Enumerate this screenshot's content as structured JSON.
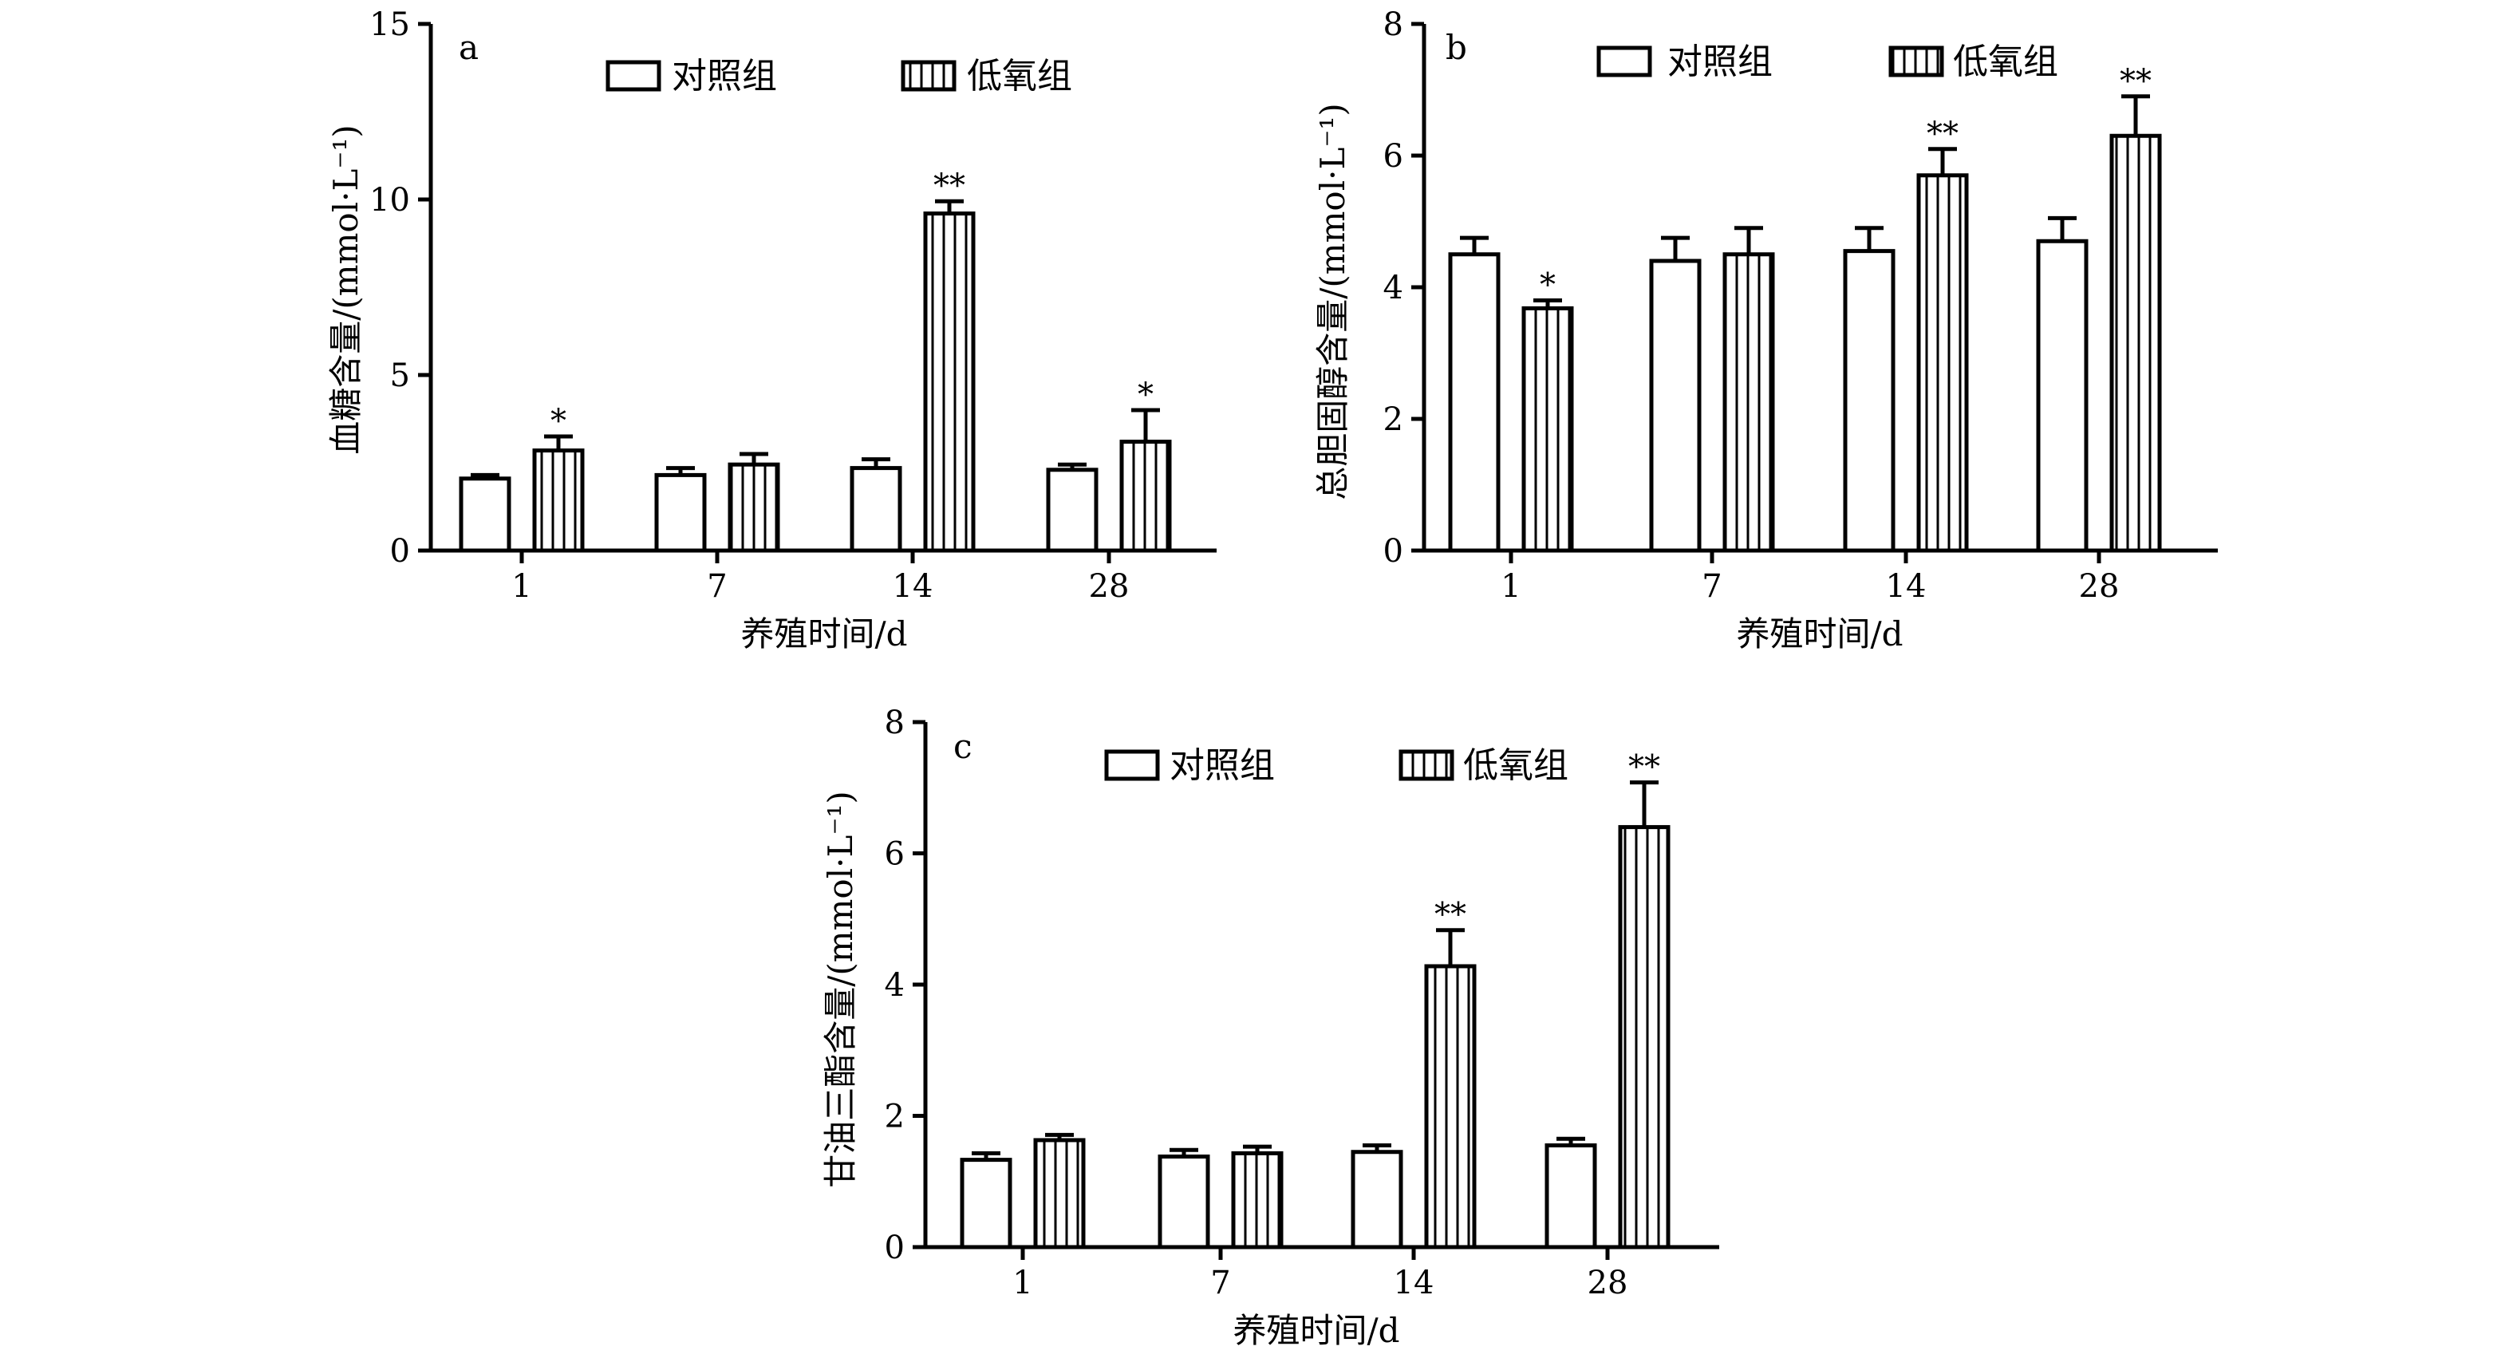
{
  "chart_data": [
    {
      "type": "bar",
      "panel_label": "a",
      "categories": [
        "1",
        "7",
        "14",
        "28"
      ],
      "series": [
        {
          "name": "对照组",
          "pattern": "open",
          "values": [
            2.05,
            2.15,
            2.35,
            2.3
          ],
          "errors": [
            0.1,
            0.2,
            0.25,
            0.15
          ]
        },
        {
          "name": "低氧组",
          "pattern": "vertical-stripes",
          "values": [
            2.85,
            2.45,
            9.6,
            3.1
          ],
          "errors": [
            0.4,
            0.3,
            0.35,
            0.9
          ]
        }
      ],
      "significance": [
        {
          "category": "1",
          "series": "低氧组",
          "mark": "*"
        },
        {
          "category": "14",
          "series": "低氧组",
          "mark": "**"
        },
        {
          "category": "28",
          "series": "低氧组",
          "mark": "*"
        }
      ],
      "xlabel": "养殖时间/d",
      "ylabel": "血糖含量/(mmol·L⁻¹)",
      "ylim": [
        0,
        15
      ],
      "yticks": [
        "0",
        "5",
        "10",
        "15"
      ],
      "legend_position": "top",
      "grid": false
    },
    {
      "type": "bar",
      "panel_label": "b",
      "categories": [
        "1",
        "7",
        "14",
        "28"
      ],
      "series": [
        {
          "name": "对照组",
          "pattern": "open",
          "values": [
            4.5,
            4.4,
            4.55,
            4.7
          ],
          "errors": [
            0.25,
            0.35,
            0.35,
            0.35
          ]
        },
        {
          "name": "低氧组",
          "pattern": "vertical-stripes",
          "values": [
            3.68,
            4.5,
            5.7,
            6.3
          ],
          "errors": [
            0.12,
            0.4,
            0.4,
            0.6
          ]
        }
      ],
      "significance": [
        {
          "category": "1",
          "series": "低氧组",
          "mark": "*"
        },
        {
          "category": "14",
          "series": "低氧组",
          "mark": "**"
        },
        {
          "category": "28",
          "series": "低氧组",
          "mark": "**"
        }
      ],
      "xlabel": "养殖时间/d",
      "ylabel": "总胆固醇含量/(mmol·L⁻¹)",
      "ylim": [
        0,
        8
      ],
      "yticks": [
        "0",
        "2",
        "4",
        "6",
        "8"
      ],
      "legend_position": "top",
      "grid": false
    },
    {
      "type": "bar",
      "panel_label": "c",
      "categories": [
        "1",
        "7",
        "14",
        "28"
      ],
      "series": [
        {
          "name": "对照组",
          "pattern": "open",
          "values": [
            1.33,
            1.38,
            1.45,
            1.55
          ],
          "errors": [
            0.1,
            0.1,
            0.1,
            0.1
          ]
        },
        {
          "name": "低氧组",
          "pattern": "vertical-stripes",
          "values": [
            1.63,
            1.43,
            4.28,
            6.4
          ],
          "errors": [
            0.08,
            0.1,
            0.55,
            0.68
          ]
        }
      ],
      "significance": [
        {
          "category": "14",
          "series": "低氧组",
          "mark": "**"
        },
        {
          "category": "28",
          "series": "低氧组",
          "mark": "**"
        }
      ],
      "xlabel": "养殖时间/d",
      "ylabel": "甘油三酯含量/(mmol·L⁻¹)",
      "ylim": [
        0,
        8
      ],
      "yticks": [
        "0",
        "2",
        "4",
        "6",
        "8"
      ],
      "legend_position": "top",
      "grid": false
    }
  ]
}
